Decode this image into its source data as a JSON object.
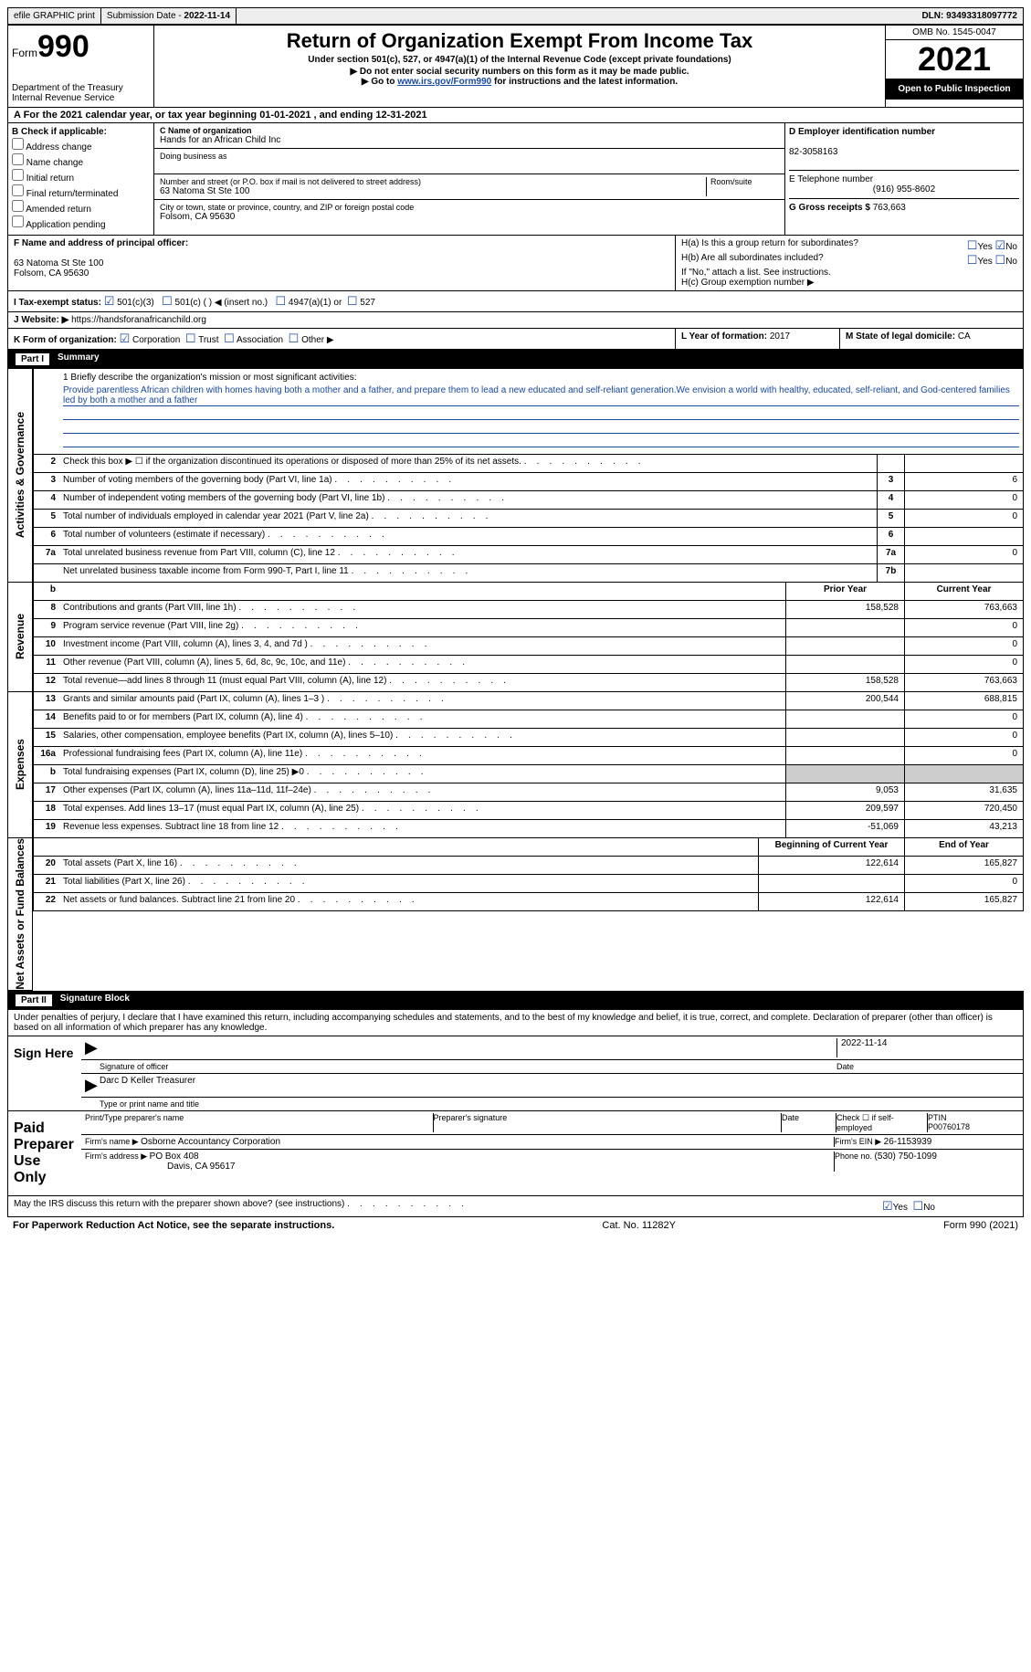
{
  "topbar": {
    "efile": "efile GRAPHIC print",
    "submission_label": "Submission Date - ",
    "submission_date": "2022-11-14",
    "dln_label": "DLN: ",
    "dln": "93493318097772"
  },
  "header": {
    "form_prefix": "Form",
    "form_number": "990",
    "dept": "Department of the Treasury\nInternal Revenue Service",
    "title": "Return of Organization Exempt From Income Tax",
    "subtitle": "Under section 501(c), 527, or 4947(a)(1) of the Internal Revenue Code (except private foundations)",
    "note1": "▶ Do not enter social security numbers on this form as it may be made public.",
    "note2_pre": "▶ Go to ",
    "note2_link": "www.irs.gov/Form990",
    "note2_post": " for instructions and the latest information.",
    "omb": "OMB No. 1545-0047",
    "year": "2021",
    "open": "Open to Public Inspection"
  },
  "row_a": "A For the 2021 calendar year, or tax year beginning 01-01-2021   , and ending 12-31-2021",
  "section_b": {
    "check_label": "B Check if applicable:",
    "options": [
      "Address change",
      "Name change",
      "Initial return",
      "Final return/terminated",
      "Amended return",
      "Application pending"
    ],
    "c_label": "C Name of organization",
    "c_name": "Hands for an African Child Inc",
    "dba_label": "Doing business as",
    "addr_label": "Number and street (or P.O. box if mail is not delivered to street address)",
    "room_label": "Room/suite",
    "addr": "63 Natoma St Ste 100",
    "city_label": "City or town, state or province, country, and ZIP or foreign postal code",
    "city": "Folsom, CA  95630",
    "d_label": "D Employer identification number",
    "d_ein": "82-3058163",
    "e_label": "E Telephone number",
    "e_phone": "(916) 955-8602",
    "g_label": "G Gross receipts $ ",
    "g_val": "763,663"
  },
  "section_f": {
    "f_label": "F Name and address of principal officer:",
    "f_addr1": "63 Natoma St Ste 100",
    "f_addr2": "Folsom, CA  95630",
    "ha_label": "H(a)  Is this a group return for subordinates?",
    "hb_label": "H(b)  Are all subordinates included?",
    "hb_note": "If \"No,\" attach a list. See instructions.",
    "hc_label": "H(c)  Group exemption number ▶",
    "yes": "Yes",
    "no": "No"
  },
  "section_i": {
    "label": "I    Tax-exempt status:",
    "opt1": "501(c)(3)",
    "opt2": "501(c) (  ) ◀ (insert no.)",
    "opt3": "4947(a)(1) or",
    "opt4": "527"
  },
  "section_j": {
    "label": "J   Website: ▶  ",
    "url": "https://handsforanafricanchild.org"
  },
  "section_k": {
    "label": "K Form of organization:",
    "opts": [
      "Corporation",
      "Trust",
      "Association",
      "Other ▶"
    ],
    "l_label": "L Year of formation: ",
    "l_val": "2017",
    "m_label": "M State of legal domicile: ",
    "m_val": "CA"
  },
  "part1": {
    "label": "Part I",
    "title": "Summary"
  },
  "mission": {
    "q1": "1   Briefly describe the organization's mission or most significant activities:",
    "text": "Provide parentless African children with homes having both a mother and a father, and prepare them to lead a new educated and self-reliant generation.We envision a world with healthy, educated, self-reliant, and God-centered families led by both a mother and a father"
  },
  "activities_tab": "Activities & Governance",
  "revenue_tab": "Revenue",
  "expenses_tab": "Expenses",
  "net_tab": "Net Assets or Fund Balances",
  "lines_ag": [
    {
      "n": "2",
      "t": "Check this box ▶ ☐  if the organization discontinued its operations or disposed of more than 25% of its net assets.",
      "nb": "",
      "v": ""
    },
    {
      "n": "3",
      "t": "Number of voting members of the governing body (Part VI, line 1a)",
      "nb": "3",
      "v": "6"
    },
    {
      "n": "4",
      "t": "Number of independent voting members of the governing body (Part VI, line 1b)",
      "nb": "4",
      "v": "0"
    },
    {
      "n": "5",
      "t": "Total number of individuals employed in calendar year 2021 (Part V, line 2a)",
      "nb": "5",
      "v": "0"
    },
    {
      "n": "6",
      "t": "Total number of volunteers (estimate if necessary)",
      "nb": "6",
      "v": ""
    },
    {
      "n": "7a",
      "t": "Total unrelated business revenue from Part VIII, column (C), line 12",
      "nb": "7a",
      "v": "0"
    },
    {
      "n": "",
      "t": "Net unrelated business taxable income from Form 990-T, Part I, line 11",
      "nb": "7b",
      "v": ""
    }
  ],
  "header_py": "Prior Year",
  "header_cy": "Current Year",
  "lines_rev": [
    {
      "n": "8",
      "t": "Contributions and grants (Part VIII, line 1h)",
      "py": "158,528",
      "cy": "763,663"
    },
    {
      "n": "9",
      "t": "Program service revenue (Part VIII, line 2g)",
      "py": "",
      "cy": "0"
    },
    {
      "n": "10",
      "t": "Investment income (Part VIII, column (A), lines 3, 4, and 7d )",
      "py": "",
      "cy": "0"
    },
    {
      "n": "11",
      "t": "Other revenue (Part VIII, column (A), lines 5, 6d, 8c, 9c, 10c, and 11e)",
      "py": "",
      "cy": "0"
    },
    {
      "n": "12",
      "t": "Total revenue—add lines 8 through 11 (must equal Part VIII, column (A), line 12)",
      "py": "158,528",
      "cy": "763,663"
    }
  ],
  "lines_exp": [
    {
      "n": "13",
      "t": "Grants and similar amounts paid (Part IX, column (A), lines 1–3 )",
      "py": "200,544",
      "cy": "688,815"
    },
    {
      "n": "14",
      "t": "Benefits paid to or for members (Part IX, column (A), line 4)",
      "py": "",
      "cy": "0"
    },
    {
      "n": "15",
      "t": "Salaries, other compensation, employee benefits (Part IX, column (A), lines 5–10)",
      "py": "",
      "cy": "0"
    },
    {
      "n": "16a",
      "t": "Professional fundraising fees (Part IX, column (A), line 11e)",
      "py": "",
      "cy": "0"
    },
    {
      "n": "b",
      "t": "Total fundraising expenses (Part IX, column (D), line 25) ▶0",
      "py": "shaded",
      "cy": "shaded"
    },
    {
      "n": "17",
      "t": "Other expenses (Part IX, column (A), lines 11a–11d, 11f–24e)",
      "py": "9,053",
      "cy": "31,635"
    },
    {
      "n": "18",
      "t": "Total expenses. Add lines 13–17 (must equal Part IX, column (A), line 25)",
      "py": "209,597",
      "cy": "720,450"
    },
    {
      "n": "19",
      "t": "Revenue less expenses. Subtract line 18 from line 12",
      "py": "-51,069",
      "cy": "43,213"
    }
  ],
  "header_boy": "Beginning of Current Year",
  "header_eoy": "End of Year",
  "lines_net": [
    {
      "n": "20",
      "t": "Total assets (Part X, line 16)",
      "py": "122,614",
      "cy": "165,827"
    },
    {
      "n": "21",
      "t": "Total liabilities (Part X, line 26)",
      "py": "",
      "cy": "0"
    },
    {
      "n": "22",
      "t": "Net assets or fund balances. Subtract line 21 from line 20",
      "py": "122,614",
      "cy": "165,827"
    }
  ],
  "part2": {
    "label": "Part II",
    "title": "Signature Block"
  },
  "penalties": "Under penalties of perjury, I declare that I have examined this return, including accompanying schedules and statements, and to the best of my knowledge and belief, it is true, correct, and complete. Declaration of preparer (other than officer) is based on all information of which preparer has any knowledge.",
  "sign": {
    "here": "Sign Here",
    "sig_officer": "Signature of officer",
    "date": "Date",
    "sig_date": "2022-11-14",
    "name": "Darc D Keller  Treasurer",
    "name_label": "Type or print name and title"
  },
  "preparer": {
    "title": "Paid Preparer Use Only",
    "h1": "Print/Type preparer's name",
    "h2": "Preparer's signature",
    "h3": "Date",
    "h4": "Check ☐ if self-employed",
    "h5": "PTIN",
    "ptin": "P00760178",
    "firm_label": "Firm's name    ▶ ",
    "firm": "Osborne Accountancy Corporation",
    "ein_label": "Firm's EIN ▶ ",
    "ein": "26-1153939",
    "addr_label": "Firm's address ▶ ",
    "addr1": "PO Box 408",
    "addr2": "Davis, CA  95617",
    "phone_label": "Phone no. ",
    "phone": "(530) 750-1099"
  },
  "discuss": "May the IRS discuss this return with the preparer shown above? (see instructions)",
  "footer": {
    "left": "For Paperwork Reduction Act Notice, see the separate instructions.",
    "mid": "Cat. No. 11282Y",
    "right": "Form 990 (2021)"
  },
  "colors": {
    "link": "#1a4aa3",
    "shade": "#cccccc"
  }
}
